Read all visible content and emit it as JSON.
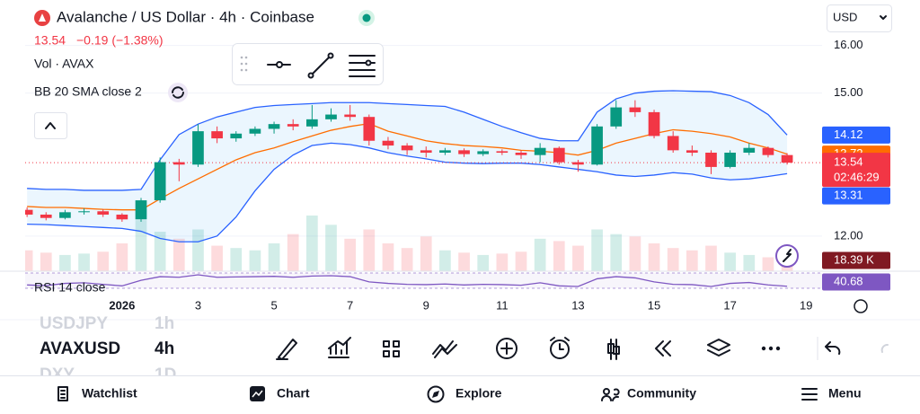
{
  "header": {
    "title": "Avalanche / US Dollar · 4h · Coinbase",
    "price": "13.54",
    "change": "−0.19 (−1.38%)",
    "volume_legend": "Vol · AVAX",
    "bb_legend": "BB 20 SMA close 2",
    "rsi_legend": "RSI 14 close",
    "currency": "USD",
    "countdown": "02:46:29"
  },
  "chart_data": {
    "type": "candlestick",
    "x": [
      -1.5,
      -1,
      -0.5,
      0,
      0.5,
      1,
      1.5,
      2,
      2.5,
      3,
      3.5,
      4,
      4.5,
      5,
      5.5,
      6,
      6.5,
      7,
      7.5,
      8,
      8.5,
      9,
      9.5,
      10,
      10.5,
      11,
      11.5,
      12,
      12.5,
      13,
      13.5,
      14,
      14.5,
      15,
      15.5,
      16,
      16.5,
      17,
      17.5,
      18,
      18.5
    ],
    "open": [
      12.55,
      12.45,
      12.38,
      12.5,
      12.52,
      12.45,
      12.35,
      12.75,
      13.55,
      13.5,
      14.2,
      14.05,
      14.15,
      14.25,
      14.35,
      14.3,
      14.45,
      14.55,
      14.5,
      14.0,
      13.9,
      13.8,
      13.75,
      13.8,
      13.72,
      13.78,
      13.75,
      13.7,
      13.85,
      13.55,
      13.5,
      14.3,
      14.7,
      14.6,
      14.1,
      13.8,
      13.75,
      13.45,
      13.75,
      13.85,
      13.7
    ],
    "high": [
      12.6,
      12.5,
      12.55,
      12.58,
      12.56,
      12.48,
      12.8,
      13.65,
      13.62,
      14.35,
      14.3,
      14.2,
      14.3,
      14.4,
      14.45,
      14.75,
      14.68,
      14.75,
      14.55,
      14.08,
      13.95,
      13.88,
      13.85,
      13.84,
      13.82,
      13.82,
      13.8,
      13.95,
      13.88,
      13.6,
      14.35,
      14.85,
      14.85,
      14.65,
      14.2,
      13.9,
      13.8,
      13.8,
      13.95,
      13.88,
      13.74
    ],
    "low": [
      12.4,
      12.33,
      12.35,
      12.45,
      12.4,
      12.3,
      12.3,
      12.7,
      13.15,
      13.45,
      13.95,
      13.98,
      14.1,
      14.15,
      14.22,
      14.25,
      14.4,
      14.42,
      13.9,
      13.82,
      13.7,
      13.65,
      13.7,
      13.66,
      13.68,
      13.7,
      13.62,
      13.55,
      13.5,
      13.35,
      13.48,
      14.25,
      14.5,
      14.05,
      13.75,
      13.68,
      13.3,
      13.42,
      13.7,
      13.65,
      13.5
    ],
    "close": [
      12.45,
      12.38,
      12.5,
      12.52,
      12.45,
      12.35,
      12.75,
      13.55,
      13.5,
      14.2,
      14.05,
      14.15,
      14.25,
      14.35,
      14.3,
      14.45,
      14.55,
      14.5,
      14.0,
      13.9,
      13.8,
      13.75,
      13.8,
      13.72,
      13.78,
      13.75,
      13.7,
      13.85,
      13.55,
      13.5,
      14.3,
      14.7,
      14.6,
      14.1,
      13.8,
      13.75,
      13.45,
      13.75,
      13.85,
      13.7,
      13.54
    ],
    "up_color": "#089981",
    "down_color": "#f23645",
    "bands": {
      "upper": [
        13.0,
        12.98,
        12.98,
        12.96,
        12.96,
        12.96,
        12.98,
        13.6,
        14.13,
        14.35,
        14.5,
        14.6,
        14.7,
        14.74,
        14.76,
        14.78,
        14.8,
        14.8,
        14.8,
        14.78,
        14.76,
        14.74,
        14.72,
        14.6,
        14.45,
        14.3,
        14.17,
        14.05,
        14.0,
        14.0,
        14.6,
        14.88,
        15.0,
        15.04,
        15.05,
        15.04,
        15.03,
        14.95,
        14.8,
        14.55,
        14.12
      ],
      "basis": [
        12.62,
        12.6,
        12.6,
        12.58,
        12.56,
        12.55,
        12.55,
        12.78,
        13.0,
        13.2,
        13.4,
        13.6,
        13.75,
        13.85,
        13.98,
        14.1,
        14.22,
        14.3,
        14.36,
        14.2,
        14.1,
        14.0,
        13.94,
        13.9,
        13.88,
        13.85,
        13.8,
        13.78,
        13.75,
        13.7,
        13.8,
        13.95,
        14.05,
        14.15,
        14.23,
        14.2,
        14.15,
        14.08,
        13.95,
        13.85,
        13.72
      ],
      "lower": [
        12.25,
        12.24,
        12.22,
        12.2,
        12.18,
        12.16,
        12.1,
        11.95,
        11.88,
        11.88,
        12.0,
        12.4,
        12.95,
        13.4,
        13.7,
        13.9,
        13.95,
        13.92,
        13.85,
        13.75,
        13.68,
        13.62,
        13.55,
        13.53,
        13.52,
        13.53,
        13.53,
        13.5,
        13.45,
        13.4,
        13.35,
        13.28,
        13.25,
        13.28,
        13.33,
        13.3,
        13.22,
        13.18,
        13.2,
        13.25,
        13.31
      ],
      "band_color": "#2962ff",
      "basis_color": "#ff6d00"
    },
    "volume": {
      "values": [
        45,
        40,
        35,
        38,
        42,
        60,
        110,
        85,
        70,
        90,
        55,
        50,
        45,
        60,
        80,
        120,
        100,
        70,
        90,
        60,
        50,
        75,
        45,
        40,
        35,
        38,
        42,
        70,
        65,
        55,
        90,
        80,
        75,
        60,
        50,
        45,
        55,
        40,
        35,
        30,
        18.39
      ],
      "last_label": "18.39 K"
    },
    "rsi": {
      "values": [
        45,
        43,
        50,
        52,
        47,
        42,
        60,
        72,
        70,
        78,
        70,
        71,
        72,
        73,
        70,
        74,
        75,
        72,
        55,
        50,
        47,
        46,
        48,
        45,
        47,
        46,
        44,
        52,
        42,
        40,
        65,
        72,
        68,
        55,
        47,
        46,
        40,
        50,
        53,
        45,
        40.68
      ],
      "color": "#7e57c2"
    },
    "xlim": [
      -1.55,
      19.42
    ],
    "xticks": [
      {
        "value": 1,
        "label": "2026"
      },
      3,
      5,
      7,
      9,
      11,
      13,
      15,
      17,
      19
    ],
    "ylim": [
      11.3,
      16.2
    ],
    "yticks": [
      {
        "value": 12,
        "label": "12.00"
      },
      {
        "value": 15,
        "label": "15.00"
      },
      {
        "value": 16,
        "label": "16.00"
      }
    ]
  },
  "symbols": [
    {
      "symbol": "USDJPY",
      "interval": "1h"
    },
    {
      "symbol": "AVAXUSD",
      "interval": "4h"
    },
    {
      "symbol": "DXY",
      "interval": "1D"
    }
  ],
  "nav": [
    "Watchlist",
    "Chart",
    "Explore",
    "Community",
    "Menu"
  ]
}
